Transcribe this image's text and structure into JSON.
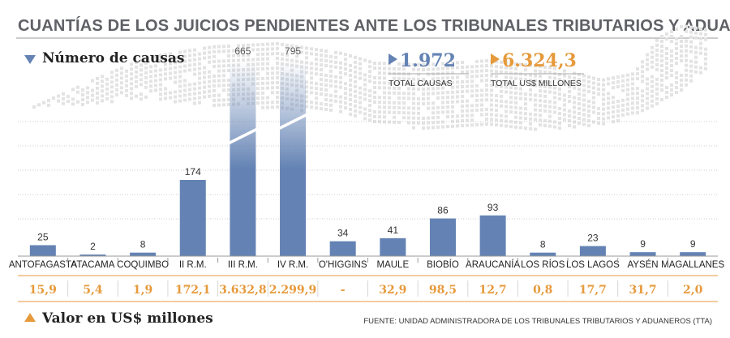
{
  "title": "CUANTÍAS DE LOS JUICIOS PENDIENTES ANTE LOS TRIBUNALES TRIBUTARIOS Y ADUANEROS",
  "legend": {
    "causes_label": "Número de causas",
    "money_label": "Valor en US$ millones"
  },
  "totals": {
    "causes_value": "1.972",
    "causes_label": "TOTAL CAUSAS",
    "money_value": "6.324,3",
    "money_label": "TOTAL US$ MILLONES"
  },
  "source": "FUENTE: UNIDAD ADMINISTRADORA DE LOS TRIBUNALES TRIBUTARIOS Y ADUANEROS (TTA)",
  "colors": {
    "bar": "#6483b4",
    "accent": "#e69a3c",
    "title": "#5f6166",
    "map": "#e3e3e3"
  },
  "chart_data": {
    "type": "bar",
    "categories": [
      "ANTOFAGASTA",
      "ATACAMA",
      "COQUIMBO",
      "II R.M.",
      "III R.M.",
      "IV R.M.",
      "O'HIGGINS",
      "MAULE",
      "BIOBÍO",
      "ARAUCANÍA",
      "LOS RÍOS",
      "LOS LAGOS",
      "AYSÉN",
      "MAGALLANES"
    ],
    "series": [
      {
        "name": "Número de causas",
        "values": [
          25,
          2,
          8,
          174,
          665,
          795,
          34,
          41,
          86,
          93,
          8,
          23,
          9,
          9
        ]
      },
      {
        "name": "Valor en US$ millones",
        "values": [
          "15,9",
          "5,4",
          "1,9",
          "172,1",
          "3.632,8",
          "2.299,9",
          "-",
          "32,9",
          "98,5",
          "12,7",
          "0,8",
          "17,7",
          "31,7",
          "2,0"
        ]
      }
    ],
    "broken_axis_bars": [
      "III R.M.",
      "IV R.M."
    ],
    "grid": true
  }
}
